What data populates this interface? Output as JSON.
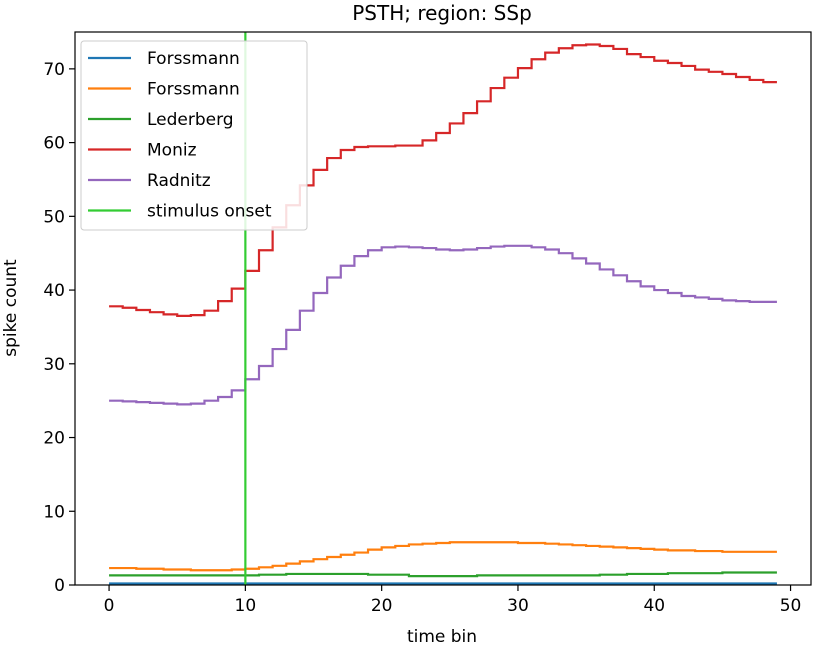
{
  "chart_data": {
    "type": "line",
    "title": "PSTH; region: SSp",
    "xlabel": "time bin",
    "ylabel": "spike count",
    "xlim": [
      -2.5,
      51.5
    ],
    "ylim": [
      0,
      75
    ],
    "xticks": [
      0,
      10,
      20,
      30,
      40,
      50
    ],
    "yticks": [
      0,
      10,
      20,
      30,
      40,
      50,
      60,
      70
    ],
    "grid": false,
    "legend_position": "top-left",
    "series": [
      {
        "name": "Forssmann",
        "color": "#1f77b4",
        "step": true,
        "x": [
          0,
          1,
          2,
          3,
          4,
          5,
          6,
          7,
          8,
          9,
          10,
          11,
          12,
          13,
          14,
          15,
          16,
          17,
          18,
          19,
          20,
          21,
          22,
          23,
          24,
          25,
          26,
          27,
          28,
          29,
          30,
          31,
          32,
          33,
          34,
          35,
          36,
          37,
          38,
          39,
          40,
          41,
          42,
          43,
          44,
          45,
          46,
          47,
          48,
          49
        ],
        "y": [
          0.2,
          0.2,
          0.2,
          0.2,
          0.2,
          0.2,
          0.2,
          0.2,
          0.2,
          0.2,
          0.2,
          0.2,
          0.2,
          0.2,
          0.2,
          0.2,
          0.2,
          0.2,
          0.2,
          0.2,
          0.2,
          0.2,
          0.2,
          0.2,
          0.2,
          0.2,
          0.2,
          0.2,
          0.2,
          0.2,
          0.2,
          0.2,
          0.2,
          0.2,
          0.2,
          0.2,
          0.2,
          0.2,
          0.2,
          0.2,
          0.2,
          0.2,
          0.2,
          0.2,
          0.2,
          0.2,
          0.2,
          0.2,
          0.2,
          0.2
        ]
      },
      {
        "name": "Forssmann",
        "color": "#ff7f0e",
        "step": true,
        "x": [
          0,
          1,
          2,
          3,
          4,
          5,
          6,
          7,
          8,
          9,
          10,
          11,
          12,
          13,
          14,
          15,
          16,
          17,
          18,
          19,
          20,
          21,
          22,
          23,
          24,
          25,
          26,
          27,
          28,
          29,
          30,
          31,
          32,
          33,
          34,
          35,
          36,
          37,
          38,
          39,
          40,
          41,
          42,
          43,
          44,
          45,
          46,
          47,
          48,
          49
        ],
        "y": [
          2.3,
          2.3,
          2.2,
          2.2,
          2.1,
          2.1,
          2.0,
          2.0,
          2.0,
          2.1,
          2.2,
          2.4,
          2.6,
          2.9,
          3.2,
          3.5,
          3.8,
          4.1,
          4.4,
          4.8,
          5.1,
          5.3,
          5.5,
          5.6,
          5.7,
          5.8,
          5.8,
          5.8,
          5.8,
          5.8,
          5.7,
          5.7,
          5.6,
          5.5,
          5.4,
          5.3,
          5.2,
          5.1,
          5.0,
          4.9,
          4.8,
          4.7,
          4.7,
          4.6,
          4.6,
          4.5,
          4.5,
          4.5,
          4.5,
          4.5
        ]
      },
      {
        "name": "Lederberg",
        "color": "#2ca02c",
        "step": true,
        "x": [
          0,
          1,
          2,
          3,
          4,
          5,
          6,
          7,
          8,
          9,
          10,
          11,
          12,
          13,
          14,
          15,
          16,
          17,
          18,
          19,
          20,
          21,
          22,
          23,
          24,
          25,
          26,
          27,
          28,
          29,
          30,
          31,
          32,
          33,
          34,
          35,
          36,
          37,
          38,
          39,
          40,
          41,
          42,
          43,
          44,
          45,
          46,
          47,
          48,
          49
        ],
        "y": [
          1.3,
          1.3,
          1.3,
          1.3,
          1.3,
          1.3,
          1.3,
          1.3,
          1.3,
          1.3,
          1.3,
          1.4,
          1.4,
          1.5,
          1.5,
          1.5,
          1.5,
          1.5,
          1.5,
          1.4,
          1.4,
          1.4,
          1.2,
          1.2,
          1.2,
          1.2,
          1.2,
          1.3,
          1.3,
          1.3,
          1.3,
          1.3,
          1.3,
          1.3,
          1.3,
          1.3,
          1.4,
          1.4,
          1.5,
          1.5,
          1.5,
          1.6,
          1.6,
          1.6,
          1.6,
          1.7,
          1.7,
          1.7,
          1.7,
          1.7
        ]
      },
      {
        "name": "Moniz",
        "color": "#d62728",
        "step": true,
        "x": [
          0,
          1,
          2,
          3,
          4,
          5,
          6,
          7,
          8,
          9,
          10,
          11,
          12,
          13,
          14,
          15,
          16,
          17,
          18,
          19,
          20,
          21,
          22,
          23,
          24,
          25,
          26,
          27,
          28,
          29,
          30,
          31,
          32,
          33,
          34,
          35,
          36,
          37,
          38,
          39,
          40,
          41,
          42,
          43,
          44,
          45,
          46,
          47,
          48,
          49
        ],
        "y": [
          37.8,
          37.6,
          37.3,
          37.0,
          36.7,
          36.5,
          36.6,
          37.2,
          38.5,
          40.2,
          42.6,
          45.4,
          48.5,
          51.5,
          54.2,
          56.3,
          57.9,
          59.0,
          59.4,
          59.5,
          59.5,
          59.6,
          59.6,
          60.3,
          61.3,
          62.6,
          64.0,
          65.6,
          67.4,
          68.8,
          70.1,
          71.3,
          72.2,
          72.8,
          73.2,
          73.3,
          73.1,
          72.7,
          72.0,
          71.6,
          71.1,
          70.8,
          70.4,
          69.9,
          69.6,
          69.3,
          68.9,
          68.5,
          68.2,
          68.2
        ]
      },
      {
        "name": "Radnitz",
        "color": "#9467bd",
        "step": true,
        "x": [
          0,
          1,
          2,
          3,
          4,
          5,
          6,
          7,
          8,
          9,
          10,
          11,
          12,
          13,
          14,
          15,
          16,
          17,
          18,
          19,
          20,
          21,
          22,
          23,
          24,
          25,
          26,
          27,
          28,
          29,
          30,
          31,
          32,
          33,
          34,
          35,
          36,
          37,
          38,
          39,
          40,
          41,
          42,
          43,
          44,
          45,
          46,
          47,
          48,
          49
        ],
        "y": [
          25.0,
          24.9,
          24.8,
          24.7,
          24.6,
          24.5,
          24.6,
          25.0,
          25.5,
          26.4,
          27.9,
          29.7,
          32.0,
          34.6,
          37.2,
          39.6,
          41.7,
          43.3,
          44.6,
          45.4,
          45.8,
          45.9,
          45.8,
          45.7,
          45.5,
          45.4,
          45.5,
          45.7,
          45.9,
          46.0,
          46.0,
          45.8,
          45.5,
          45.0,
          44.3,
          43.6,
          42.8,
          42.0,
          41.2,
          40.5,
          40.0,
          39.6,
          39.2,
          39.0,
          38.8,
          38.6,
          38.5,
          38.4,
          38.4,
          38.4
        ]
      }
    ],
    "vline": {
      "name": "stimulus onset",
      "x": 10,
      "color": "#33cc33"
    }
  }
}
